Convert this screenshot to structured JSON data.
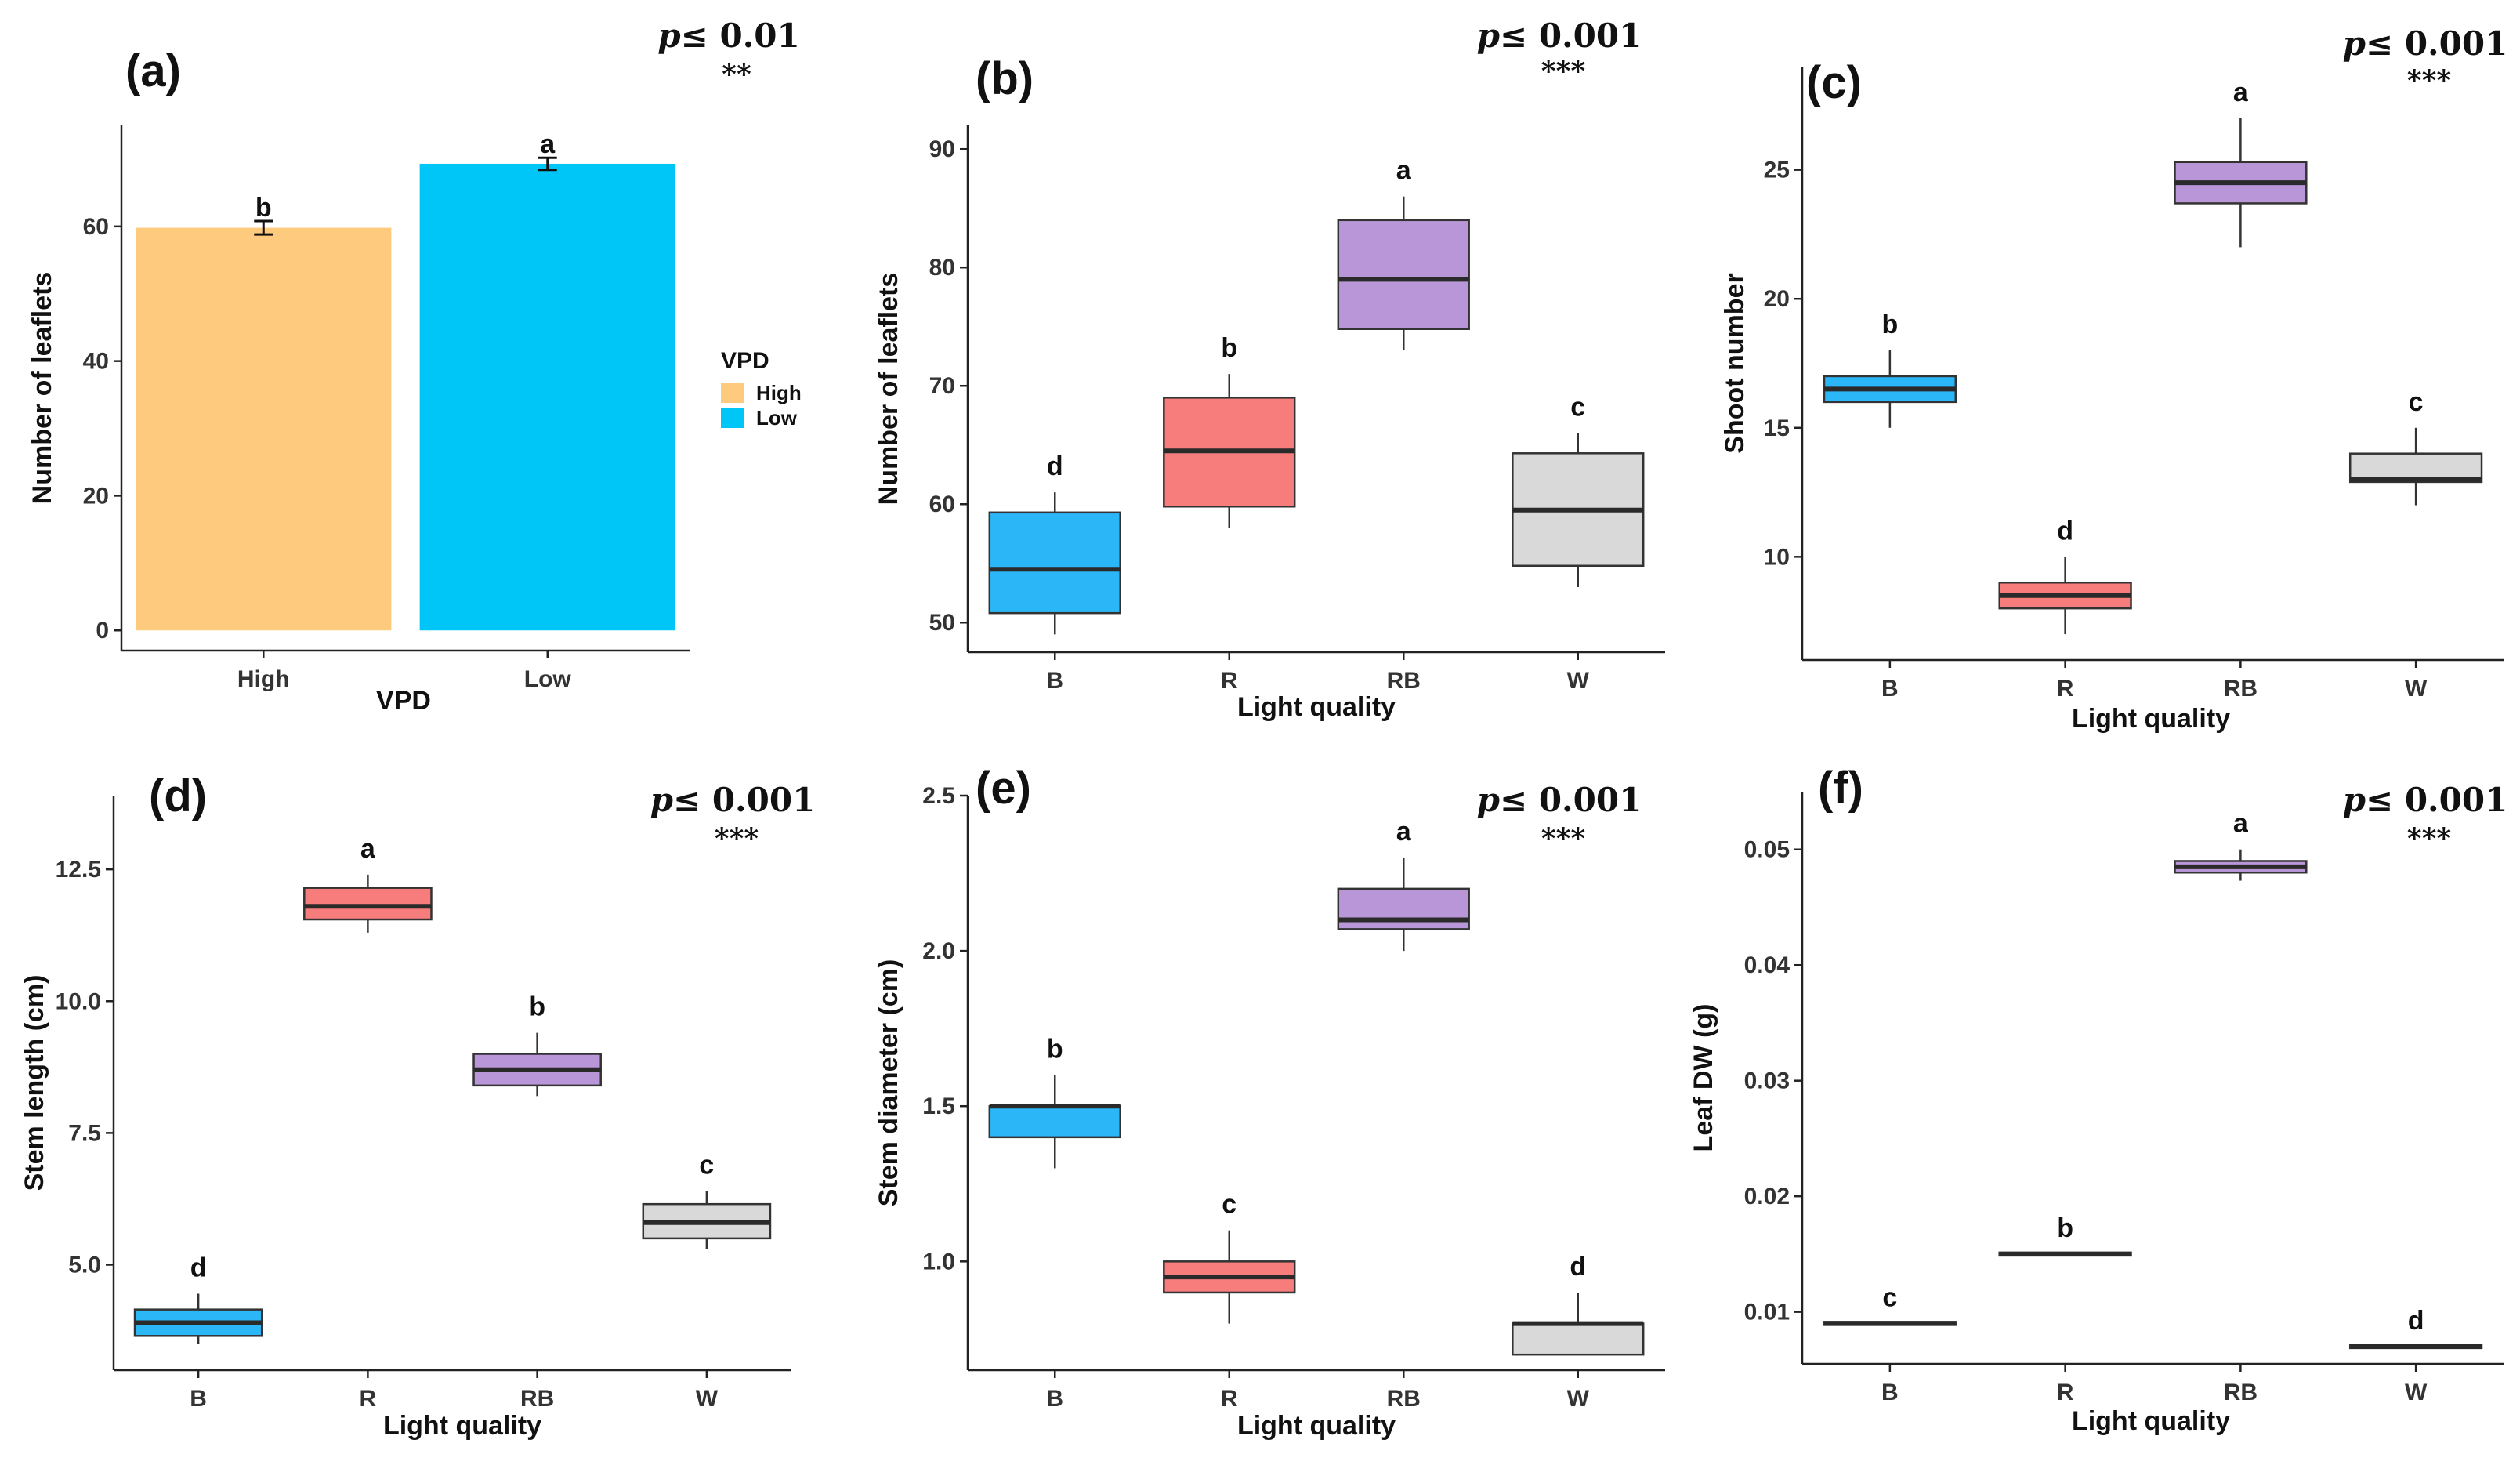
{
  "colors": {
    "B": "#2BB7F7",
    "R": "#F77C7C",
    "RB": "#B996D8",
    "W": "#D9D9D9",
    "High": "#FECB7E",
    "Low": "#00C6F7",
    "outline": "#333333",
    "median": "#2a2a2a"
  },
  "chart_data": [
    {
      "id": "a",
      "type": "bar",
      "panel_label": "(a)",
      "p_text": "p≤ 0.01",
      "stars": "**",
      "xlabel": "VPD",
      "ylabel": "Number of leaflets",
      "categories": [
        "High",
        "Low"
      ],
      "values": [
        59.8,
        69.3
      ],
      "errors": [
        1.0,
        0.9
      ],
      "sig_letters": [
        "b",
        "a"
      ],
      "ylim": [
        -3,
        75
      ],
      "yticks": [
        0,
        20,
        40,
        60
      ],
      "legend": {
        "title": "VPD",
        "items": [
          "High",
          "Low"
        ],
        "position": "right"
      },
      "grid": false
    },
    {
      "id": "b",
      "type": "box",
      "panel_label": "(b)",
      "p_text": "p≤ 0.001",
      "stars": "***",
      "xlabel": "Light quality",
      "ylabel": "Number of leaflets",
      "categories": [
        "B",
        "R",
        "RB",
        "W"
      ],
      "boxes": [
        {
          "min": 49,
          "q1": 50.8,
          "median": 54.5,
          "q3": 59.3,
          "max": 61
        },
        {
          "min": 58,
          "q1": 59.8,
          "median": 64.5,
          "q3": 69,
          "max": 71
        },
        {
          "min": 73,
          "q1": 74.8,
          "median": 79,
          "q3": 84,
          "max": 86
        },
        {
          "min": 53,
          "q1": 54.8,
          "median": 59.5,
          "q3": 64.3,
          "max": 66
        }
      ],
      "sig_letters": [
        "d",
        "b",
        "a",
        "c"
      ],
      "ylim": [
        47.5,
        92
      ],
      "yticks": [
        50,
        60,
        70,
        80,
        90
      ],
      "grid": false
    },
    {
      "id": "c",
      "type": "box",
      "panel_label": "(c)",
      "p_text": "p≤ 0.001",
      "stars": "***",
      "xlabel": "Light quality",
      "ylabel": "Shoot number",
      "categories": [
        "B",
        "R",
        "RB",
        "W"
      ],
      "boxes": [
        {
          "min": 15,
          "q1": 16,
          "median": 16.5,
          "q3": 17,
          "max": 18
        },
        {
          "min": 7,
          "q1": 8,
          "median": 8.5,
          "q3": 9,
          "max": 10
        },
        {
          "min": 22,
          "q1": 23.7,
          "median": 24.5,
          "q3": 25.3,
          "max": 27
        },
        {
          "min": 12,
          "q1": 12.9,
          "median": 13,
          "q3": 14,
          "max": 15
        }
      ],
      "sig_letters": [
        "b",
        "d",
        "a",
        "c"
      ],
      "ylim": [
        6,
        29
      ],
      "yticks": [
        10,
        15,
        20,
        25
      ],
      "grid": false
    },
    {
      "id": "d",
      "type": "box",
      "panel_label": "(d)",
      "p_text": "p≤ 0.001",
      "stars": "***",
      "xlabel": "Light quality",
      "ylabel": "Stem length (cm)",
      "categories": [
        "B",
        "R",
        "RB",
        "W"
      ],
      "boxes": [
        {
          "min": 3.5,
          "q1": 3.65,
          "median": 3.9,
          "q3": 4.15,
          "max": 4.45
        },
        {
          "min": 11.3,
          "q1": 11.55,
          "median": 11.8,
          "q3": 12.15,
          "max": 12.4
        },
        {
          "min": 8.2,
          "q1": 8.4,
          "median": 8.7,
          "q3": 9.0,
          "max": 9.4
        },
        {
          "min": 5.3,
          "q1": 5.5,
          "median": 5.8,
          "q3": 6.15,
          "max": 6.4
        }
      ],
      "sig_letters": [
        "d",
        "a",
        "b",
        "c"
      ],
      "ylim": [
        3.0,
        13.9
      ],
      "yticks": [
        5.0,
        7.5,
        10.0,
        12.5
      ],
      "grid": false
    },
    {
      "id": "e",
      "type": "box",
      "panel_label": "(e)",
      "p_text": "p≤ 0.001",
      "stars": "***",
      "xlabel": "Light quality",
      "ylabel": "Stem diameter (cm)",
      "categories": [
        "B",
        "R",
        "RB",
        "W"
      ],
      "boxes": [
        {
          "min": 1.3,
          "q1": 1.4,
          "median": 1.5,
          "q3": 1.5,
          "max": 1.6
        },
        {
          "min": 0.8,
          "q1": 0.9,
          "median": 0.95,
          "q3": 1.0,
          "max": 1.1
        },
        {
          "min": 2.0,
          "q1": 2.07,
          "median": 2.1,
          "q3": 2.2,
          "max": 2.3
        },
        {
          "min": 0.7,
          "q1": 0.7,
          "median": 0.8,
          "q3": 0.8,
          "max": 0.9
        }
      ],
      "sig_letters": [
        "b",
        "c",
        "a",
        "d"
      ],
      "ylim": [
        0.65,
        2.5
      ],
      "yticks": [
        1.0,
        1.5,
        2.0,
        2.5
      ],
      "grid": false
    },
    {
      "id": "f",
      "type": "box",
      "panel_label": "(f)",
      "p_text": "p≤ 0.001",
      "stars": "***",
      "xlabel": "Light quality",
      "ylabel": "Leaf DW (g)",
      "categories": [
        "B",
        "R",
        "RB",
        "W"
      ],
      "boxes": [
        {
          "min": 0.009,
          "q1": 0.009,
          "median": 0.009,
          "q3": 0.009,
          "max": 0.009
        },
        {
          "min": 0.015,
          "q1": 0.015,
          "median": 0.015,
          "q3": 0.015,
          "max": 0.015
        },
        {
          "min": 0.0473,
          "q1": 0.048,
          "median": 0.0485,
          "q3": 0.049,
          "max": 0.05
        },
        {
          "min": 0.007,
          "q1": 0.007,
          "median": 0.007,
          "q3": 0.007,
          "max": 0.007
        }
      ],
      "sig_letters": [
        "c",
        "b",
        "a",
        "d"
      ],
      "ylim": [
        0.0055,
        0.055
      ],
      "yticks": [
        0.01,
        0.02,
        0.03,
        0.04,
        0.05
      ],
      "grid": false
    }
  ]
}
